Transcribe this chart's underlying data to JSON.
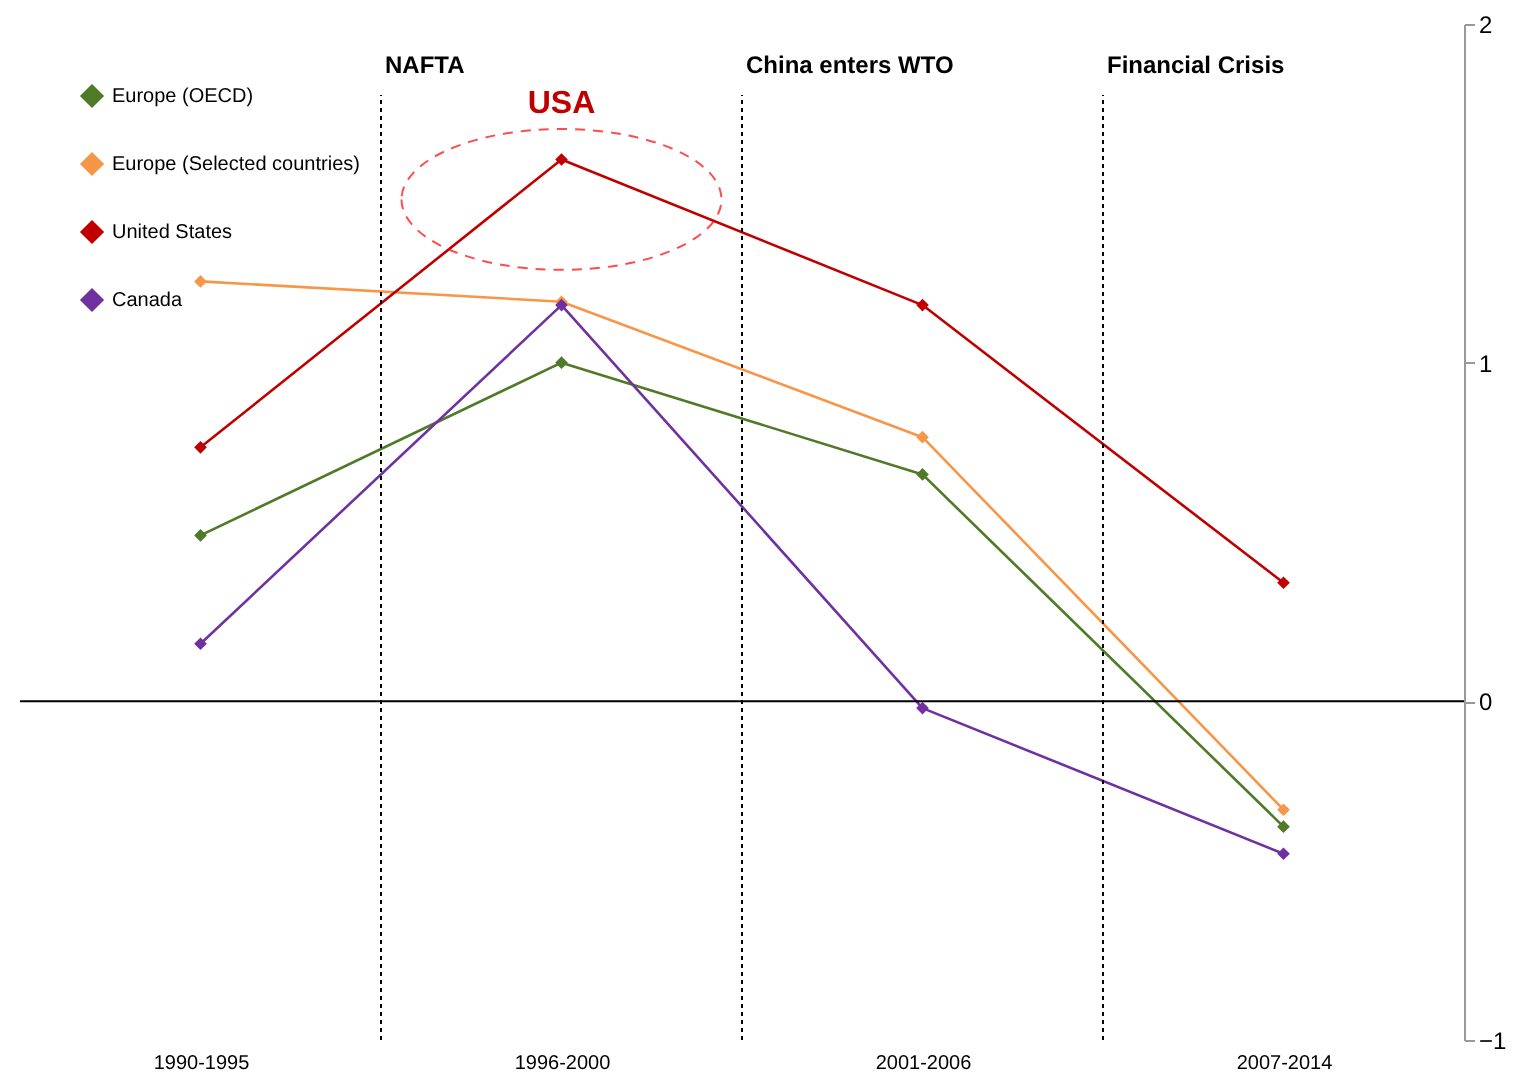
{
  "chart_data": {
    "type": "line",
    "categories": [
      "1990-1995",
      "1996-2000",
      "2001-2006",
      "2007-2014"
    ],
    "series": [
      {
        "name": "Europe (OECD)",
        "color": "#4f7a28",
        "values": [
          0.49,
          1.0,
          0.67,
          -0.37
        ]
      },
      {
        "name": "Europe (Selected countries)",
        "color": "#f79646",
        "values": [
          1.24,
          1.18,
          0.78,
          -0.32
        ]
      },
      {
        "name": "United States",
        "color": "#c00000",
        "values": [
          0.75,
          1.6,
          1.17,
          0.35
        ]
      },
      {
        "name": "Canada",
        "color": "#7030a0",
        "values": [
          0.17,
          1.17,
          -0.02,
          -0.45
        ]
      }
    ],
    "ylim": [
      -1,
      2
    ],
    "yticks": [
      -1,
      0,
      1,
      2
    ],
    "grid": false,
    "legend": "top left",
    "marker": "diamond",
    "line_style": "solid",
    "annotations": [
      "NAFTA",
      "China enters WTO",
      "Financial Crisis",
      {
        "text": "USA",
        "x": "1996-2000",
        "y": 1.6
      }
    ]
  }
}
